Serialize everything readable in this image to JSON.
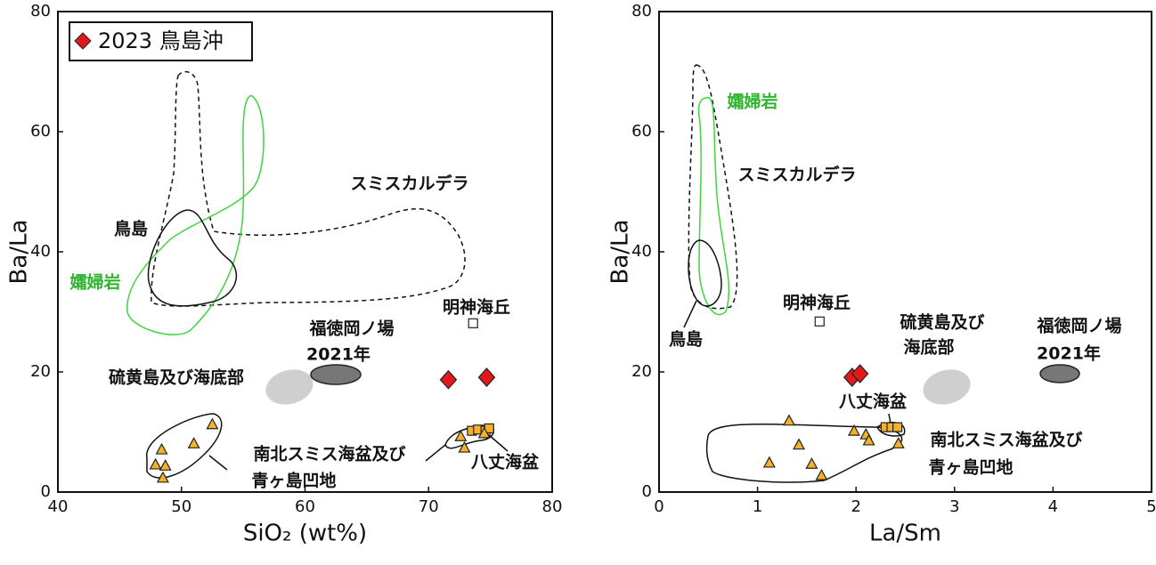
{
  "chart_data": [
    {
      "type": "scatter",
      "xlabel": "SiO₂ (wt%)",
      "ylabel": "Ba/La",
      "xlim": [
        40,
        80
      ],
      "ylim": [
        0,
        80
      ],
      "xticks": [
        40,
        50,
        60,
        70,
        80
      ],
      "yticks": [
        0,
        20,
        40,
        60,
        80
      ],
      "legend": "upper left",
      "series": [
        {
          "name": "2023 鳥島沖",
          "color": "#e0191b",
          "marker": "diamond",
          "x": [
            71.6,
            74.7
          ],
          "values": [
            18.7,
            19.1
          ]
        },
        {
          "name": "明神海丘",
          "color": "#ffffff",
          "marker": "square",
          "x": [
            73.6
          ],
          "values": [
            28.1
          ]
        },
        {
          "name": "八丈海盆",
          "color": "#f5b12a",
          "marker": "square",
          "x": [
            73.5,
            74.0,
            74.6,
            74.9
          ],
          "values": [
            10.2,
            10.4,
            10.2,
            10.6
          ]
        },
        {
          "name": [
            "南北スミス海盆及び",
            "青ヶ島凹地"
          ],
          "color": "#f5b12a",
          "marker": "triangle",
          "x": [
            48.4,
            47.9,
            48.7,
            48.5,
            51.0,
            52.5,
            72.6,
            72.9,
            74.5
          ],
          "values": [
            7.1,
            4.6,
            4.4,
            2.4,
            8.1,
            11.3,
            9.3,
            7.4,
            9.8
          ]
        }
      ],
      "annotations": [
        {
          "text": [
            "スミスカルデラ"
          ],
          "color": "#111111"
        },
        {
          "text": [
            "鳥島"
          ],
          "color": "#111111"
        },
        {
          "text": [
            "孀婦岩"
          ],
          "color": "#2db52d"
        },
        {
          "text": [
            "福徳岡ノ場",
            "2021年"
          ],
          "color": "#111111"
        },
        {
          "text": [
            "硫黄島及び海底部"
          ],
          "color": "#111111"
        }
      ]
    },
    {
      "type": "scatter",
      "xlabel": "La/Sm",
      "ylabel": "Ba/La",
      "xlim": [
        0,
        5
      ],
      "ylim": [
        0,
        80
      ],
      "xticks": [
        0,
        1,
        2,
        3,
        4,
        5
      ],
      "yticks": [
        0,
        20,
        40,
        60,
        80
      ],
      "series": [
        {
          "color": "#e0191b",
          "marker": "diamond",
          "x": [
            1.96,
            2.04
          ],
          "values": [
            19.1,
            19.7
          ]
        },
        {
          "name": "明神海丘",
          "color": "#ffffff",
          "marker": "square",
          "x": [
            1.63
          ],
          "values": [
            28.4
          ]
        },
        {
          "name": "八丈海盆",
          "color": "#f5b12a",
          "marker": "square",
          "x": [
            2.3,
            2.36,
            2.42
          ],
          "values": [
            10.8,
            10.8,
            10.8
          ]
        },
        {
          "name": [
            "南北スミス海盆及び",
            "青ヶ島凹地"
          ],
          "color": "#f5b12a",
          "marker": "triangle",
          "x": [
            1.32,
            1.12,
            1.42,
            1.55,
            1.65,
            1.98,
            2.1,
            2.13,
            2.43
          ],
          "values": [
            11.9,
            4.9,
            7.9,
            4.7,
            2.8,
            10.2,
            9.6,
            8.6,
            8.1
          ]
        }
      ],
      "annotations": [
        {
          "text": [
            "スミスカルデラ"
          ],
          "color": "#111111"
        },
        {
          "text": [
            "鳥島"
          ],
          "color": "#111111"
        },
        {
          "text": [
            "孀婦岩"
          ],
          "color": "#2db52d"
        },
        {
          "text": [
            "福徳岡ノ場",
            "2021年"
          ],
          "color": "#111111"
        },
        {
          "text": [
            "硫黄島及び",
            "海底部"
          ],
          "color": "#111111"
        }
      ]
    }
  ]
}
